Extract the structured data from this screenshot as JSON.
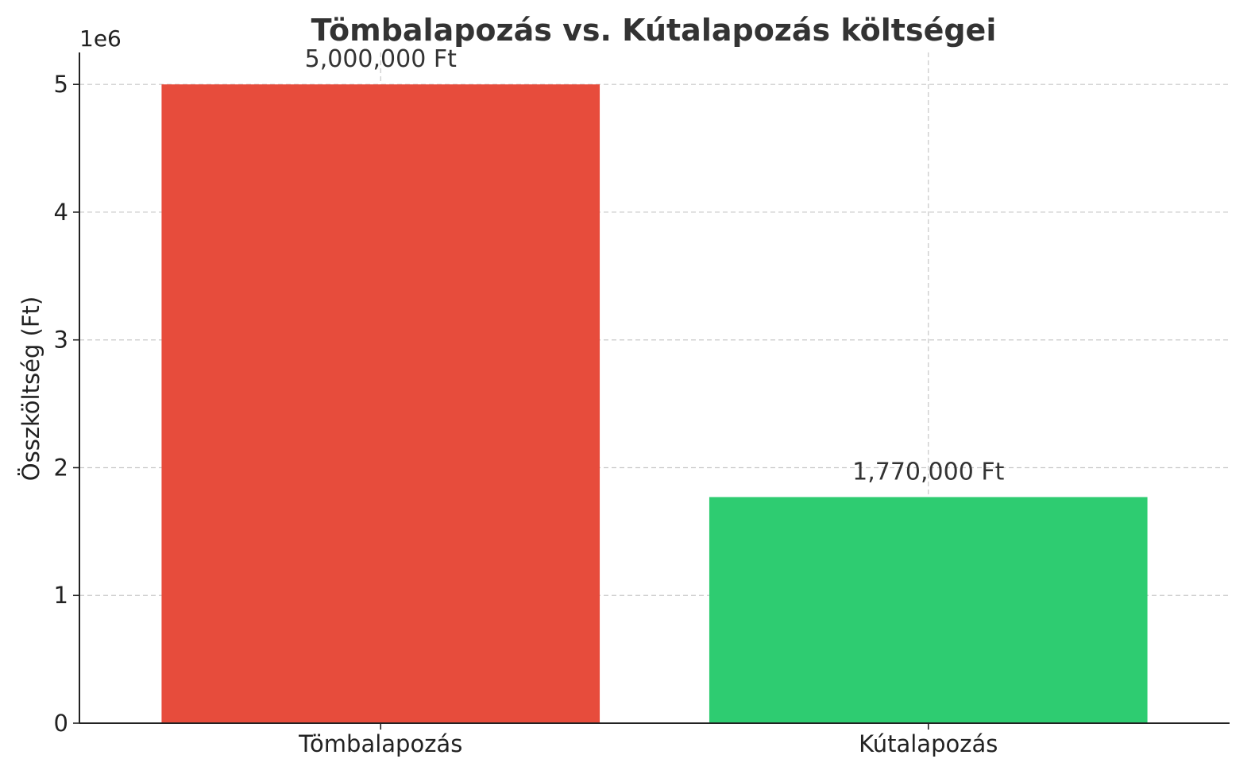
{
  "chart_data": {
    "type": "bar",
    "title": "Tömbalapozás vs. Kútalapozás költségei",
    "xlabel": "",
    "ylabel": "Összköltség (Ft)",
    "y_offset_label": "1e6",
    "ylim": [
      0,
      5250000
    ],
    "yticks": [
      0,
      1000000,
      2000000,
      3000000,
      4000000,
      5000000
    ],
    "ytick_labels": [
      "0",
      "1",
      "2",
      "3",
      "4",
      "5"
    ],
    "categories": [
      "Tömbalapozás",
      "Kútalapozás"
    ],
    "values": [
      5000000,
      1770000
    ],
    "data_labels": [
      "5,000,000 Ft",
      "1,770,000 Ft"
    ],
    "colors": [
      "#e74c3c",
      "#2ecc71"
    ],
    "grid": true,
    "legend": "none"
  }
}
